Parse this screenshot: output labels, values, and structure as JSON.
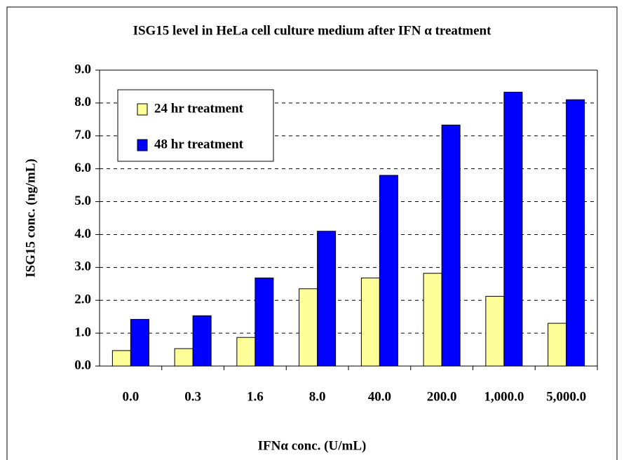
{
  "chart_data": {
    "type": "bar",
    "title": "ISG15 level in HeLa cell culture medium after IFN α treatment",
    "x_label": "IFNα conc. (U/mL)",
    "y_label": "ISG15 conc. (ng/mL)",
    "categories": [
      "0.0",
      "0.3",
      "1.6",
      "8.0",
      "40.0",
      "200.0",
      "1,000.0",
      "5,000.0"
    ],
    "series": [
      {
        "name": "24 hr treatment",
        "color": "#ffff99",
        "values": [
          0.47,
          0.53,
          0.87,
          2.35,
          2.68,
          2.82,
          2.12,
          1.3
        ]
      },
      {
        "name": "48 hr treatment",
        "color": "#0000ff",
        "values": [
          1.42,
          1.53,
          2.68,
          4.1,
          5.8,
          7.33,
          8.33,
          8.1
        ]
      }
    ],
    "ylim": [
      0,
      9
    ],
    "yticks": [
      {
        "value": 0,
        "label": "0.0"
      },
      {
        "value": 1,
        "label": "1.0"
      },
      {
        "value": 2,
        "label": "2.0"
      },
      {
        "value": 3,
        "label": "3.0"
      },
      {
        "value": 4,
        "label": "4.0"
      },
      {
        "value": 5,
        "label": "5.0"
      },
      {
        "value": 6,
        "label": "6.0"
      },
      {
        "value": 7,
        "label": "7.0"
      },
      {
        "value": 8,
        "label": "8.0"
      },
      {
        "value": 9,
        "label": "9.0"
      }
    ],
    "grid": true,
    "legend": "upper-left"
  }
}
